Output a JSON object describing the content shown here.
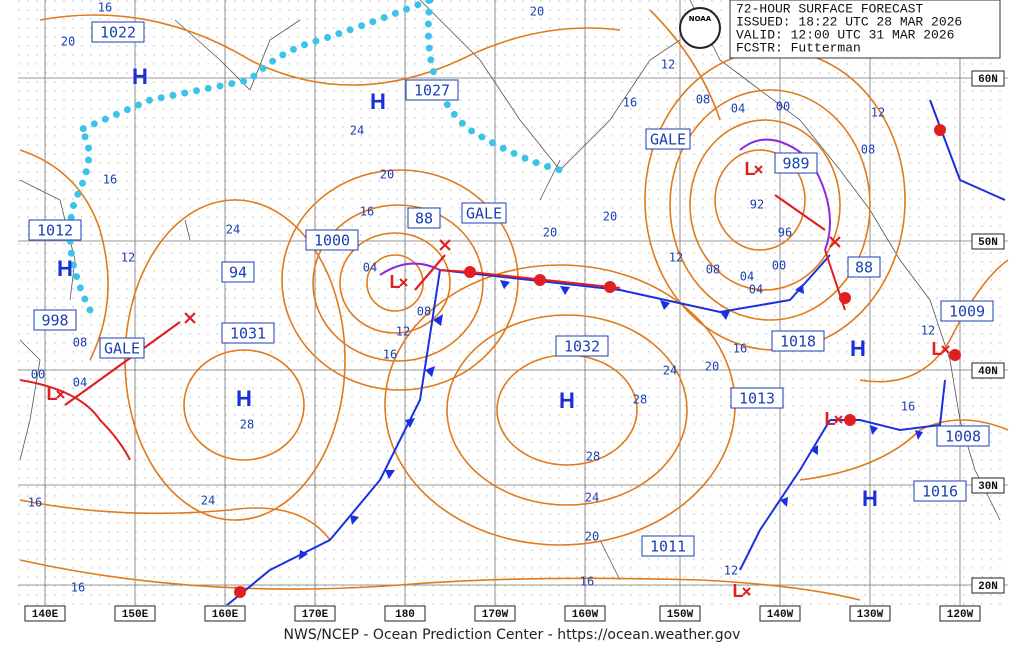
{
  "header": {
    "lines": [
      "72-HOUR SURFACE FORECAST",
      "ISSUED: 18:22 UTC 28 MAR 2026",
      "VALID:  12:00 UTC 31 MAR 2026",
      "FCSTR:  Futterman"
    ],
    "logo": "NOAA"
  },
  "footer": "NWS/NCEP - Ocean Prediction Center - https://ocean.weather.gov",
  "longitude_labels": [
    "140E",
    "150E",
    "160E",
    "170E",
    "180",
    "170W",
    "160W",
    "150W",
    "140W",
    "130W",
    "120W"
  ],
  "latitude_labels": [
    "60N",
    "50N",
    "40N",
    "30N",
    "20N"
  ],
  "pressure_centers": [
    "1022",
    "1012",
    "998",
    "1000",
    "88",
    "94",
    "1031",
    "1027",
    "1032",
    "1013",
    "1011",
    "989",
    "1018",
    "88",
    "1009",
    "1008",
    "1016"
  ],
  "warnings": [
    "GALE",
    "GALE",
    "GALE"
  ],
  "highs": [
    "H",
    "H",
    "H",
    "H",
    "H",
    "H",
    "H"
  ],
  "lows": [
    "L",
    "L",
    "L",
    "L",
    "L",
    "L"
  ],
  "isobar_labels": [
    "16",
    "20",
    "20",
    "12",
    "16",
    "08",
    "04",
    "00",
    "12",
    "08",
    "92",
    "96",
    "12",
    "08",
    "04",
    "00",
    "04",
    "20",
    "20",
    "24",
    "16",
    "12",
    "24",
    "20",
    "16",
    "04",
    "08",
    "12",
    "16",
    "08",
    "00",
    "04",
    "28",
    "24",
    "16",
    "16",
    "28",
    "24",
    "20",
    "16",
    "28",
    "24",
    "20",
    "16",
    "12",
    "12",
    "16"
  ]
}
